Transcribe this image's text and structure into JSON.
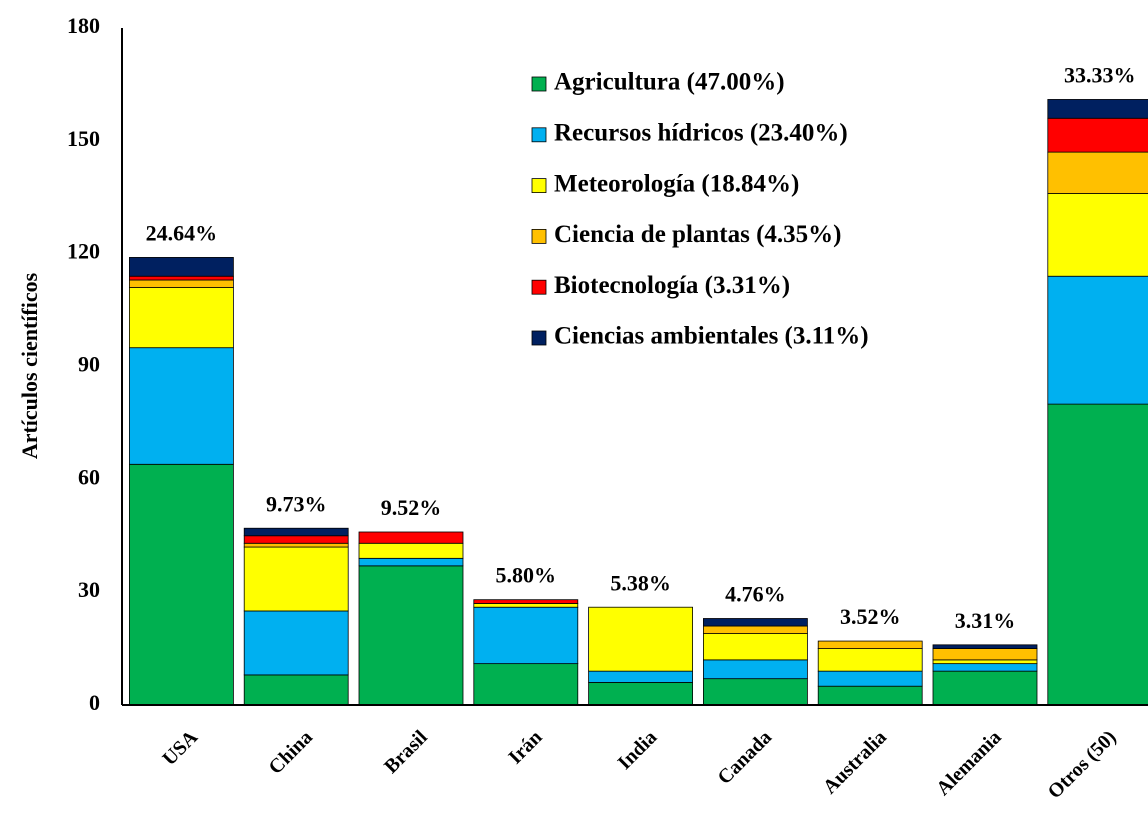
{
  "chart_data": {
    "type": "stacked_bar",
    "y_axis_label": "Artículos científicos",
    "categories": [
      "USA",
      "China",
      "Brasil",
      "Irán",
      "India",
      "Canada",
      "Australia",
      "Alemania",
      "Otros (50)"
    ],
    "bar_labels": [
      "24.64%",
      "9.73%",
      "9.52%",
      "5.80%",
      "5.38%",
      "4.76%",
      "3.52%",
      "3.31%",
      "33.33%"
    ],
    "series": [
      {
        "name": "Agricultura (47.00%)",
        "color": "#00b050",
        "values": [
          64,
          8,
          37,
          11,
          6,
          7,
          5,
          9,
          80
        ]
      },
      {
        "name": "Recursos hídricos (23.40%)",
        "color": "#00b0f0",
        "values": [
          31,
          17,
          2,
          15,
          3,
          5,
          4,
          2,
          34
        ]
      },
      {
        "name": "Meteorología (18.84%)",
        "color": "#ffff00",
        "values": [
          16,
          17,
          4,
          1,
          17,
          7,
          6,
          1,
          22
        ]
      },
      {
        "name": "Ciencia de plantas (4.35%)",
        "color": "#ffc000",
        "values": [
          2,
          1,
          0,
          0,
          0,
          2,
          2,
          3,
          11
        ]
      },
      {
        "name": "Biotecnología (3.31%)",
        "color": "#ff0000",
        "values": [
          1,
          2,
          3,
          1,
          0,
          0,
          0,
          0,
          9
        ]
      },
      {
        "name": "Ciencias ambientales (3.11%)",
        "color": "#002060",
        "values": [
          5,
          2,
          0,
          0,
          0,
          2,
          0,
          1,
          5
        ]
      }
    ],
    "ylim": [
      0,
      180
    ],
    "yticks": [
      0,
      30,
      60,
      90,
      120,
      150,
      180
    ],
    "grid": false,
    "legend": "upper right"
  }
}
